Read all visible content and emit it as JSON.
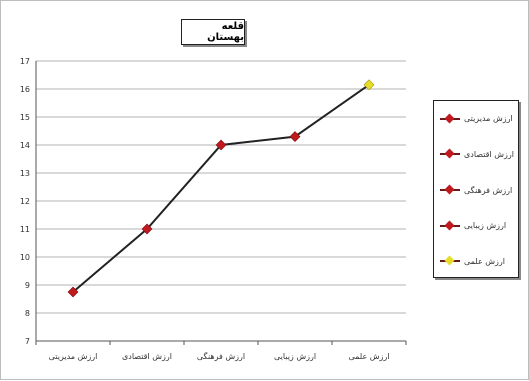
{
  "chart_data": {
    "type": "line",
    "title": "قلعه بهستان",
    "categories": [
      "ارزش مدیریتی",
      "ارزش اقتصادی",
      "ارزش فرهنگی",
      "ارزش زیبایی",
      "ارزش علمی"
    ],
    "series": [
      {
        "values": [
          8.75,
          11,
          14,
          14.3,
          16.15
        ]
      }
    ],
    "ylim": [
      7,
      17
    ],
    "yticks": [
      7,
      8,
      9,
      10,
      11,
      12,
      13,
      14,
      15,
      16,
      17
    ],
    "grid": true,
    "legend_position": "right",
    "legend": [
      {
        "label": "ارزش مدیریتی",
        "color": "#c0191e"
      },
      {
        "label": "ارزش اقتصادی",
        "color": "#c0191e"
      },
      {
        "label": "ارزش فرهنگی",
        "color": "#c0191e"
      },
      {
        "label": "ارزش زیبایی",
        "color": "#c0191e"
      },
      {
        "label": "ارزش علمی",
        "color": "#e6dc2a"
      }
    ],
    "colors": {
      "line": "#222222",
      "marker": "#c0191e",
      "last_marker": "#e6dc2a",
      "grid": "#9a9a9a"
    }
  }
}
